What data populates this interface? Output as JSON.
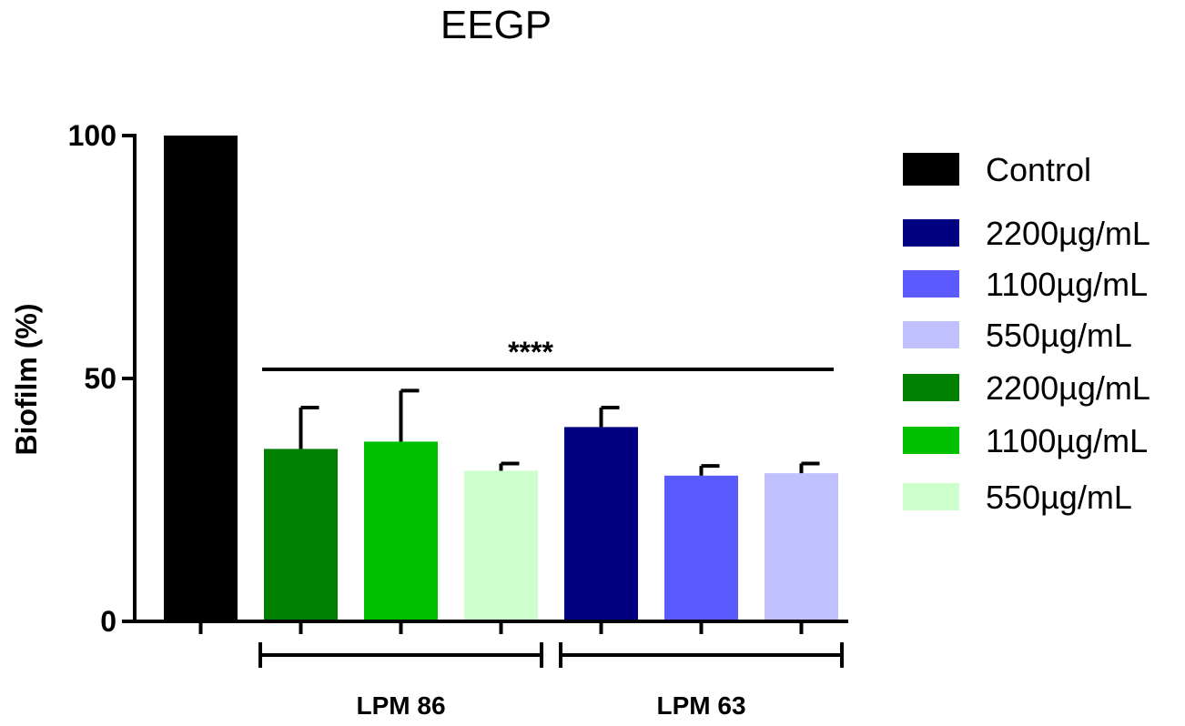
{
  "chart_data": {
    "type": "bar",
    "title": "EEGP",
    "ylabel": "Biofilm (%)",
    "xlabel": "",
    "ylim": [
      0,
      100
    ],
    "yticks": [
      0,
      50,
      100
    ],
    "grid": false,
    "legend_position": "right",
    "bars": [
      {
        "legend": "Control",
        "value": 100,
        "error": 0,
        "color": "#000000",
        "group": ""
      },
      {
        "legend": "2200µg/mL",
        "value": 35.5,
        "error": 8.5,
        "color": "#008000",
        "group": "LPM 86"
      },
      {
        "legend": "1100µg/mL",
        "value": 37,
        "error": 10.5,
        "color": "#00c000",
        "group": "LPM 86"
      },
      {
        "legend": "550µg/mL",
        "value": 31,
        "error": 1.5,
        "color": "#ccffcc",
        "group": "LPM 86"
      },
      {
        "legend": "2200µg/mL",
        "value": 40,
        "error": 4,
        "color": "#000080",
        "group": "LPM 63"
      },
      {
        "legend": "1100µg/mL",
        "value": 30,
        "error": 2,
        "color": "#5a5aff",
        "group": "LPM 63"
      },
      {
        "legend": "550µg/mL",
        "value": 30.5,
        "error": 2,
        "color": "#c0c0ff",
        "group": "LPM 63"
      }
    ],
    "groups": [
      "LPM 86",
      "LPM 63"
    ],
    "significance": {
      "label": "****",
      "y": 54.5
    },
    "legend": [
      {
        "label": "Control",
        "color": "#000000"
      },
      {
        "label": "2200µg/mL",
        "color": "#000080"
      },
      {
        "label": "1100µg/mL",
        "color": "#5a5aff"
      },
      {
        "label": "550µg/mL",
        "color": "#c0c0ff"
      },
      {
        "label": "2200µg/mL",
        "color": "#008000"
      },
      {
        "label": "1100µg/mL",
        "color": "#00c000"
      },
      {
        "label": "550µg/mL",
        "color": "#ccffcc"
      }
    ]
  }
}
